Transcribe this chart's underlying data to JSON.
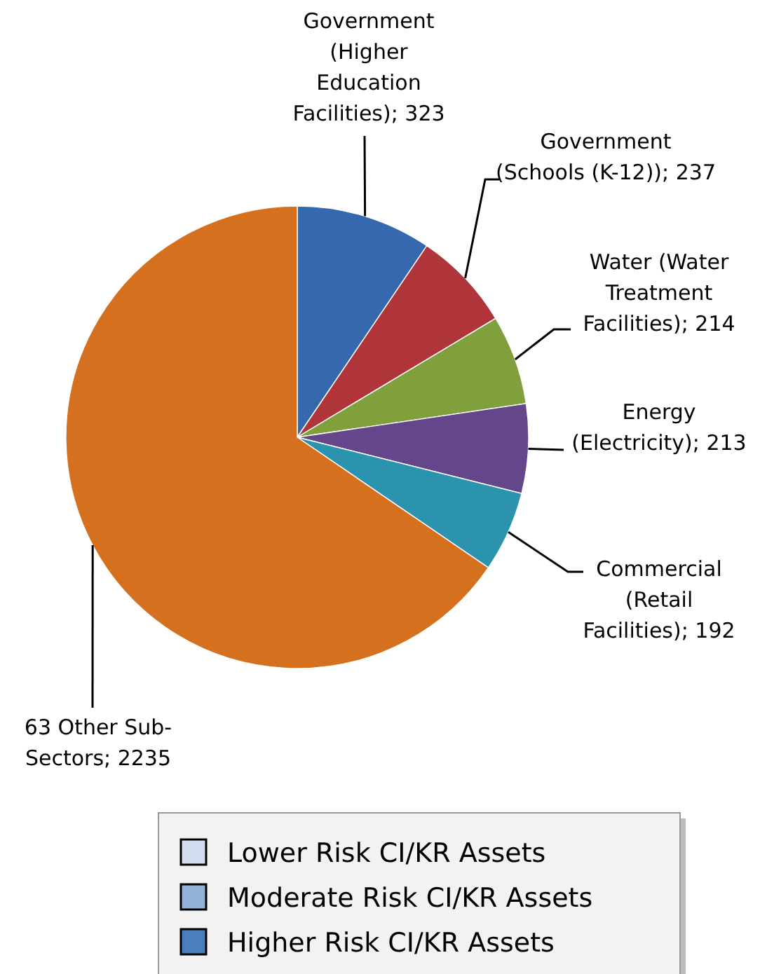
{
  "chart_data": {
    "type": "pie",
    "categories": [
      "Government (Higher Education Facilities)",
      "Government (Schools (K-12))",
      "Water (Water Treatment Facilities)",
      "Energy (Electricity)",
      "Commercial (Retail Facilities)",
      "63 Other Sub-Sectors"
    ],
    "values": [
      323,
      237,
      214,
      213,
      192,
      2235
    ],
    "colors": [
      "#3568ad",
      "#b0353a",
      "#7fa03c",
      "#64478a",
      "#2b93ad",
      "#d5701f"
    ],
    "value_labels": [
      "; 323",
      "; 237",
      "; 214",
      "; 213",
      "; 192",
      "; 2235"
    ],
    "annotations": [
      "Lower Risk CI/KR Assets",
      "Moderate Risk CI/KR Assets",
      "Higher Risk CI/KR Assets"
    ]
  }
}
